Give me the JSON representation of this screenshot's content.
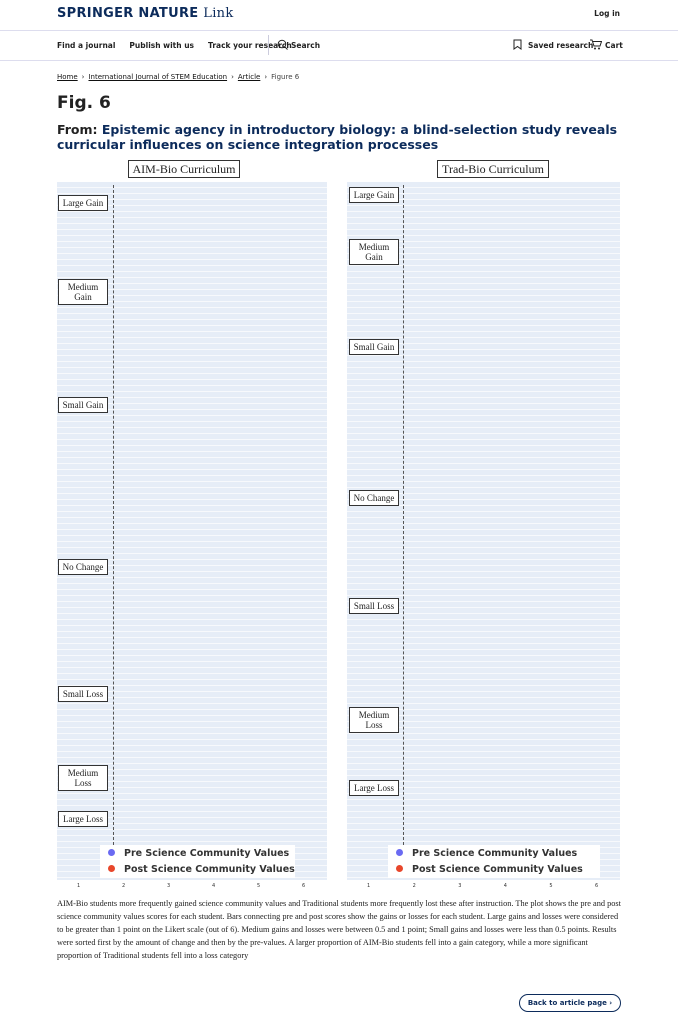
{
  "header": {
    "brand": "SPRINGER NATURE",
    "brand_suffix": "Link",
    "login": "Log in"
  },
  "nav": {
    "items": [
      "Find a journal",
      "Publish with us",
      "Track your research"
    ],
    "search": "Search",
    "saved": "Saved research",
    "cart": "Cart"
  },
  "breadcrumb": [
    "Home",
    "International Journal of STEM Education",
    "Article",
    "Figure 6"
  ],
  "figure": {
    "label": "Fig. 6",
    "from": "From:",
    "article_title": "Epistemic agency in introductory biology: a blind-selection study reveals curricular influences on science integration processes",
    "panels": [
      {
        "title": "AIM-Bio Curriculum",
        "groups": [
          "Large Gain",
          "Medium Gain",
          "Small Gain",
          "No Change",
          "Small Loss",
          "Medium Loss",
          "Large Loss"
        ],
        "xticks": [
          1,
          2,
          3,
          4,
          5,
          6
        ]
      },
      {
        "title": "Trad-Bio Curriculum",
        "groups": [
          "Large Gain",
          "Medium Gain",
          "Small Gain",
          "No Change",
          "Small Loss",
          "Medium Loss",
          "Large Loss"
        ],
        "xticks": [
          1,
          2,
          3,
          4,
          5,
          6
        ]
      }
    ],
    "legend": [
      {
        "name": "Pre Science Community Values",
        "color": "#6a6af2"
      },
      {
        "name": "Post Science Community Values",
        "color": "#e8472b"
      }
    ],
    "caption": "AIM-Bio students more frequently gained science community values and Traditional students more frequently lost these after instruction. The plot shows the pre and post science community values scores for each student. Bars connecting pre and post scores show the gains or losses for each student. Large gains and losses were considered to be greater than 1 point on the Likert scale (out of 6). Medium gains and losses were between 0.5 and 1 point; Small gains and losses were less than 0.5 points. Results were sorted first by the amount of change and then by the pre-values. A larger proportion of AIM-Bio students fell into a gain category, while a more significant proportion of Traditional students fell into a loss category"
  },
  "back_button": "Back to article page"
}
